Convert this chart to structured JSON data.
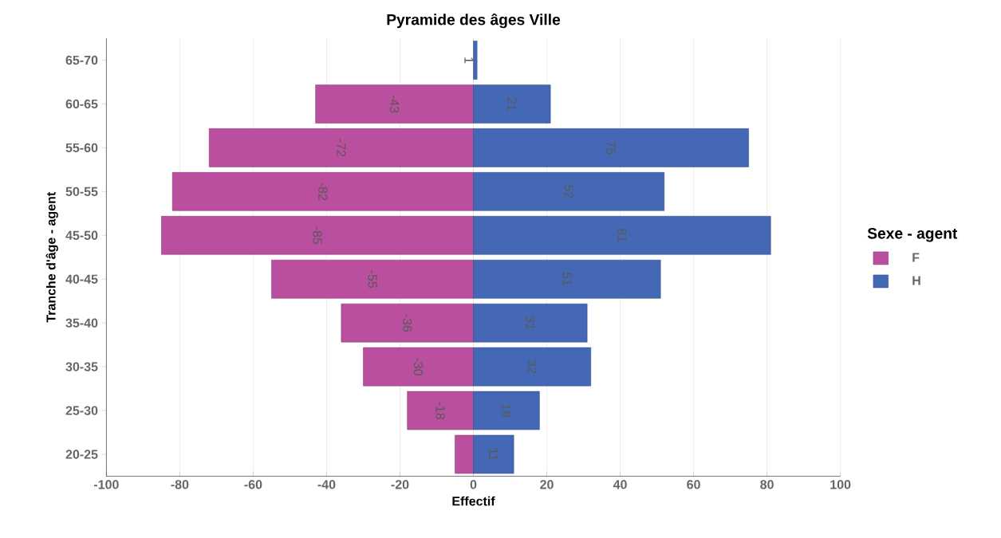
{
  "chart_data": {
    "type": "bar",
    "orientation": "horizontal",
    "title": "Pyramide des âges Ville",
    "xlabel": "Effectif",
    "ylabel": "Tranche d'âge - agent",
    "legend_title": "Sexe - agent",
    "categories": [
      "65-70",
      "60-65",
      "55-60",
      "50-55",
      "45-50",
      "40-45",
      "35-40",
      "30-35",
      "25-30",
      "20-25"
    ],
    "series": [
      {
        "name": "F",
        "color": "#b94f9e",
        "values": [
          null,
          -43,
          -72,
          -82,
          -85,
          -55,
          -36,
          -30,
          -18,
          -5
        ],
        "value_labels": [
          null,
          "-43",
          "-72",
          "-82",
          "-85",
          "-55",
          "-36",
          "-30",
          "-18",
          null
        ]
      },
      {
        "name": "H",
        "color": "#4468b6",
        "values": [
          1,
          21,
          75,
          52,
          81,
          51,
          31,
          32,
          18,
          11
        ],
        "value_labels": [
          "1",
          "21",
          "75",
          "52",
          "81",
          "51",
          "31",
          "32",
          "18",
          "11"
        ]
      }
    ],
    "stacked": true,
    "xlim": [
      -100,
      100
    ],
    "xticks": [
      -100,
      -80,
      -60,
      -40,
      -20,
      0,
      20,
      40,
      60,
      80,
      100
    ],
    "grid": "x",
    "legend": "right"
  }
}
